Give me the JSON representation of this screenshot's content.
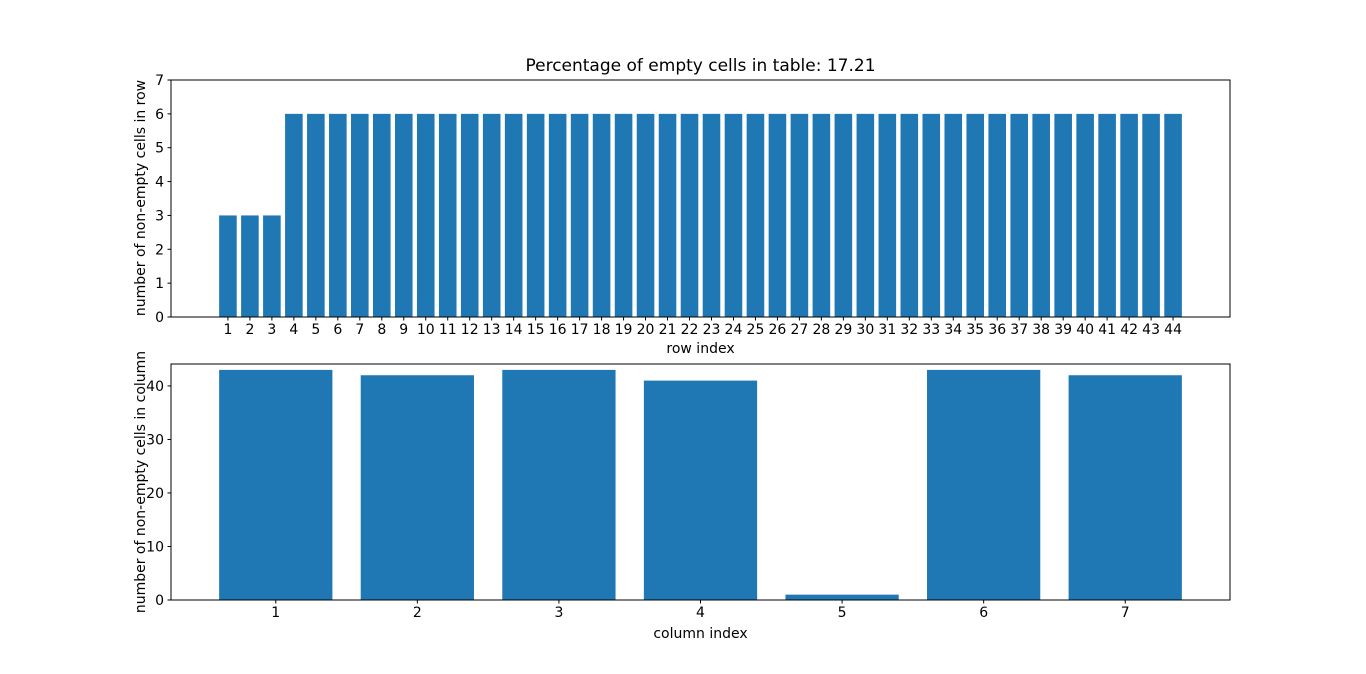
{
  "figure": {
    "background": "#ffffff",
    "bar_color": "#1f77b4",
    "text_color": "#000000",
    "axis_color": "#000000"
  },
  "chart_data": [
    {
      "type": "bar",
      "title": "Percentage of empty cells in table: 17.21",
      "xlabel": "row index",
      "ylabel": "number of non-empty cells in row",
      "categories": [
        "1",
        "2",
        "3",
        "4",
        "5",
        "6",
        "7",
        "8",
        "9",
        "10",
        "11",
        "12",
        "13",
        "14",
        "15",
        "16",
        "17",
        "18",
        "19",
        "20",
        "21",
        "22",
        "23",
        "24",
        "25",
        "26",
        "27",
        "28",
        "29",
        "30",
        "31",
        "32",
        "33",
        "34",
        "35",
        "36",
        "37",
        "38",
        "39",
        "40",
        "41",
        "42",
        "43",
        "44"
      ],
      "values": [
        3,
        3,
        3,
        6,
        6,
        6,
        6,
        6,
        6,
        6,
        6,
        6,
        6,
        6,
        6,
        6,
        6,
        6,
        6,
        6,
        6,
        6,
        6,
        6,
        6,
        6,
        6,
        6,
        6,
        6,
        6,
        6,
        6,
        6,
        6,
        6,
        6,
        6,
        6,
        6,
        6,
        6,
        6,
        6
      ],
      "ylim": [
        0,
        7
      ],
      "yticks": [
        0,
        1,
        2,
        3,
        4,
        5,
        6,
        7
      ],
      "bar_color": "#1f77b4",
      "grid": false,
      "legend": null
    },
    {
      "type": "bar",
      "title": "",
      "xlabel": "column index",
      "ylabel": "number of non-empty cells in column",
      "categories": [
        "1",
        "2",
        "3",
        "4",
        "5",
        "6",
        "7"
      ],
      "values": [
        43,
        42,
        43,
        41,
        1,
        43,
        42
      ],
      "ylim": [
        0,
        44.1
      ],
      "yticks": [
        0,
        10,
        20,
        30,
        40
      ],
      "bar_color": "#1f77b4",
      "grid": false,
      "legend": null
    }
  ]
}
